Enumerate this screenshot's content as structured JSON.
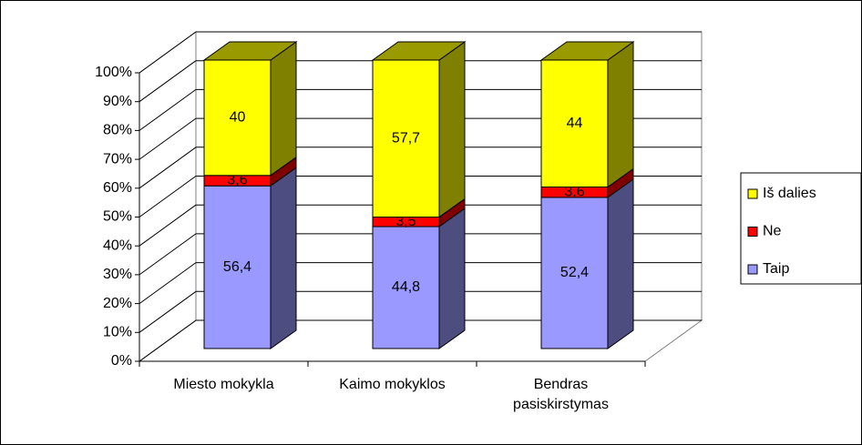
{
  "chart_data": {
    "type": "bar",
    "stacked": "percent",
    "categories": [
      "Miesto mokykla",
      "Kaimo mokyklos",
      "Bendras pasiskirstymas"
    ],
    "series": [
      {
        "name": "Taip",
        "color": "#9999ff",
        "side_color": "#4d4d80",
        "values": [
          56.4,
          44.8,
          52.4
        ],
        "value_labels": [
          "56,4",
          "44,8",
          "52,4"
        ]
      },
      {
        "name": "Ne",
        "color": "#ff0000",
        "side_color": "#800000",
        "values": [
          3.6,
          3.5,
          3.6
        ],
        "value_labels": [
          "3,6",
          "3,5",
          "3,6"
        ]
      },
      {
        "name": "Iš dalies",
        "color": "#ffff00",
        "side_color": "#808000",
        "values": [
          40,
          57.7,
          44
        ],
        "value_labels": [
          "40",
          "57,7",
          "44"
        ]
      }
    ],
    "ylim": [
      0,
      100
    ],
    "yticks": [
      {
        "value": 0,
        "label": "0%"
      },
      {
        "value": 10,
        "label": "10%"
      },
      {
        "value": 20,
        "label": "20%"
      },
      {
        "value": 30,
        "label": "30%"
      },
      {
        "value": 40,
        "label": "40%"
      },
      {
        "value": 50,
        "label": "50%"
      },
      {
        "value": 60,
        "label": "60%"
      },
      {
        "value": 70,
        "label": "70%"
      },
      {
        "value": 80,
        "label": "80%"
      },
      {
        "value": 90,
        "label": "90%"
      },
      {
        "value": 100,
        "label": "100%"
      }
    ],
    "grid": true,
    "legend": "right"
  }
}
